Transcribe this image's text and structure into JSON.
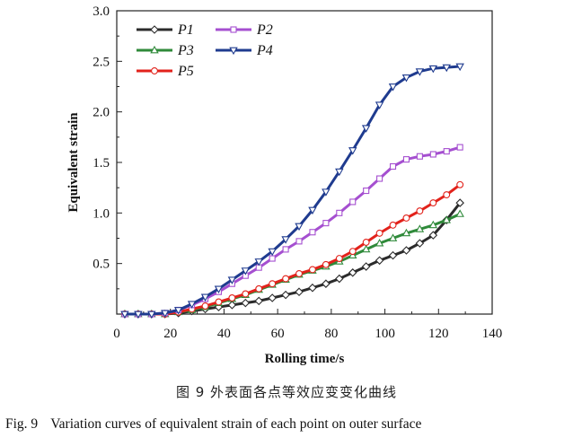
{
  "chart_data": {
    "type": "line",
    "xlabel": "Rolling time/s",
    "ylabel": "Equivalent strain",
    "xlim": [
      0,
      140
    ],
    "ylim": [
      0,
      3.0
    ],
    "x_ticks": [
      "0",
      "20",
      "40",
      "60",
      "80",
      "100",
      "120",
      "140"
    ],
    "y_ticks": [
      "0.5",
      "1.0",
      "1.5",
      "2.0",
      "2.5",
      "3.0"
    ],
    "grid": false,
    "legend_position": "top-left",
    "series": [
      {
        "name": "P1",
        "color": "#2b2b2b",
        "marker": "diamond",
        "x": [
          3,
          8,
          13,
          18,
          23,
          28,
          33,
          38,
          43,
          48,
          53,
          58,
          63,
          68,
          73,
          78,
          83,
          88,
          93,
          98,
          103,
          108,
          113,
          118,
          123,
          128
        ],
        "y": [
          0.0,
          0.0,
          0.0,
          0.0,
          0.01,
          0.03,
          0.05,
          0.07,
          0.09,
          0.11,
          0.13,
          0.16,
          0.19,
          0.22,
          0.26,
          0.3,
          0.35,
          0.41,
          0.47,
          0.53,
          0.58,
          0.63,
          0.7,
          0.78,
          0.93,
          1.1
        ]
      },
      {
        "name": "P2",
        "color": "#a54fd0",
        "marker": "square",
        "x": [
          3,
          8,
          13,
          18,
          23,
          28,
          33,
          38,
          43,
          48,
          53,
          58,
          63,
          68,
          73,
          78,
          83,
          88,
          93,
          98,
          103,
          108,
          113,
          118,
          123,
          128
        ],
        "y": [
          0.0,
          0.0,
          0.0,
          0.01,
          0.04,
          0.09,
          0.15,
          0.22,
          0.3,
          0.38,
          0.46,
          0.55,
          0.64,
          0.72,
          0.81,
          0.9,
          1.0,
          1.11,
          1.22,
          1.34,
          1.46,
          1.53,
          1.56,
          1.58,
          1.61,
          1.65
        ]
      },
      {
        "name": "P3",
        "color": "#2f8a3a",
        "marker": "triangle-up",
        "x": [
          3,
          8,
          13,
          18,
          23,
          28,
          33,
          38,
          43,
          48,
          53,
          58,
          63,
          68,
          73,
          78,
          83,
          88,
          93,
          98,
          103,
          108,
          113,
          118,
          123,
          128
        ],
        "y": [
          0.0,
          0.0,
          0.0,
          0.0,
          0.02,
          0.04,
          0.07,
          0.11,
          0.15,
          0.19,
          0.24,
          0.29,
          0.34,
          0.39,
          0.43,
          0.47,
          0.52,
          0.58,
          0.64,
          0.7,
          0.75,
          0.8,
          0.84,
          0.88,
          0.93,
          0.99
        ]
      },
      {
        "name": "P4",
        "color": "#1f3b8f",
        "marker": "triangle-down",
        "x": [
          3,
          8,
          13,
          18,
          23,
          28,
          33,
          38,
          43,
          48,
          53,
          58,
          63,
          68,
          73,
          78,
          83,
          88,
          93,
          98,
          103,
          108,
          113,
          118,
          123,
          128
        ],
        "y": [
          0.0,
          0.0,
          0.0,
          0.01,
          0.04,
          0.1,
          0.17,
          0.25,
          0.34,
          0.43,
          0.52,
          0.62,
          0.74,
          0.87,
          1.03,
          1.21,
          1.41,
          1.62,
          1.84,
          2.07,
          2.25,
          2.34,
          2.4,
          2.43,
          2.44,
          2.45
        ]
      },
      {
        "name": "P5",
        "color": "#e2221b",
        "marker": "circle",
        "x": [
          3,
          8,
          13,
          18,
          23,
          28,
          33,
          38,
          43,
          48,
          53,
          58,
          63,
          68,
          73,
          78,
          83,
          88,
          93,
          98,
          103,
          108,
          113,
          118,
          123,
          128
        ],
        "y": [
          0.0,
          0.0,
          0.0,
          0.0,
          0.02,
          0.05,
          0.08,
          0.12,
          0.16,
          0.2,
          0.25,
          0.3,
          0.35,
          0.4,
          0.44,
          0.49,
          0.55,
          0.62,
          0.71,
          0.8,
          0.88,
          0.95,
          1.02,
          1.1,
          1.18,
          1.28
        ]
      }
    ]
  },
  "caption": {
    "cn": "图 9    外表面各点等效应变变化曲线",
    "en_label": "Fig. 9",
    "en_text": "Variation curves of equivalent strain of each point on outer surface"
  }
}
